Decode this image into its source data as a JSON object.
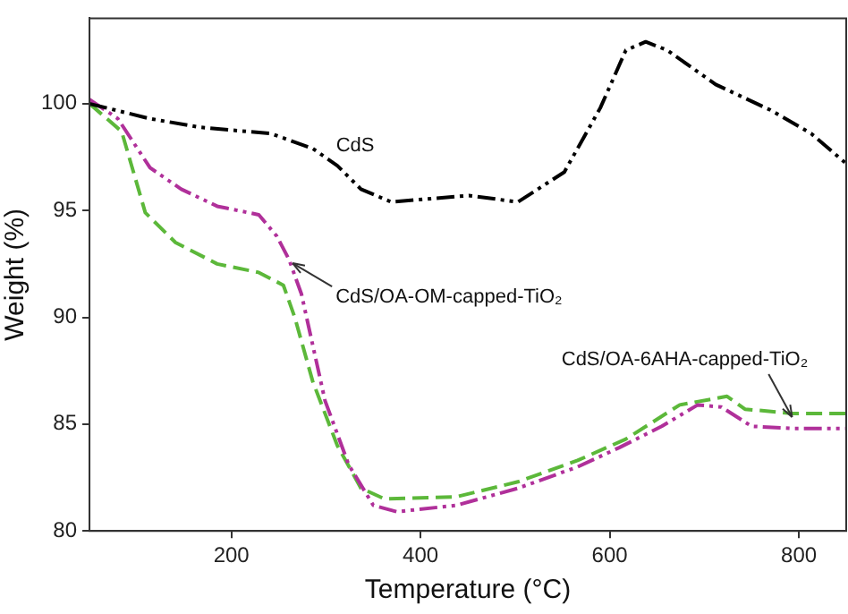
{
  "chart_data": {
    "type": "line",
    "xlabel": "Temperature (°C)",
    "ylabel": "Weight (%)",
    "xlim": [
      50,
      850
    ],
    "ylim": [
      80,
      104
    ],
    "xticks": [
      200,
      400,
      600,
      800
    ],
    "yticks": [
      80,
      85,
      90,
      95,
      100
    ],
    "grid": false,
    "legend": false,
    "marker": "none",
    "series": [
      {
        "color": "#000000",
        "line_style": "dotted",
        "x": [
          50,
          114,
          166,
          242,
          286,
          312,
          337,
          369,
          451,
          503,
          552,
          590,
          617,
          638,
          661,
          712,
          770,
          813,
          850
        ],
        "values": [
          100.0,
          99.3,
          98.9,
          98.6,
          97.9,
          97.1,
          96.0,
          95.4,
          95.7,
          95.4,
          96.8,
          99.8,
          102.5,
          102.9,
          102.5,
          100.9,
          99.7,
          98.6,
          97.2
        ]
      },
      {
        "color": "#b0309a",
        "line_style": "dotted",
        "x": [
          50,
          80,
          114,
          147,
          185,
          229,
          248,
          261,
          274,
          299,
          324,
          350,
          375,
          438,
          503,
          566,
          610,
          655,
          693,
          718,
          750,
          794,
          850
        ],
        "values": [
          100.2,
          99.3,
          97.0,
          96.0,
          95.2,
          94.8,
          93.8,
          92.7,
          91.1,
          86.1,
          83.1,
          81.2,
          80.9,
          81.2,
          82.0,
          83.0,
          83.9,
          84.9,
          85.9,
          85.8,
          84.9,
          84.8,
          84.8
        ]
      },
      {
        "color": "#5cb83a",
        "line_style": "dashed",
        "x": [
          50,
          84,
          109,
          141,
          185,
          229,
          255,
          267,
          286,
          312,
          337,
          362,
          438,
          503,
          566,
          617,
          674,
          724,
          743,
          794,
          850
        ],
        "values": [
          100.0,
          98.7,
          94.9,
          93.5,
          92.5,
          92.1,
          91.5,
          90.0,
          87.0,
          84.0,
          82.0,
          81.5,
          81.6,
          82.3,
          83.3,
          84.3,
          85.9,
          86.3,
          85.7,
          85.5,
          85.5
        ]
      }
    ],
    "annotations": [
      {
        "text": "CdS",
        "x": 312,
        "y": 97.1
      },
      {
        "text": "CdS/OA-OM-capped-TiO₂",
        "x": 261,
        "y": 92.7
      },
      {
        "text": "CdS/OA-6AHA-capped-TiO₂",
        "x": 789,
        "y": 85.5
      }
    ]
  }
}
